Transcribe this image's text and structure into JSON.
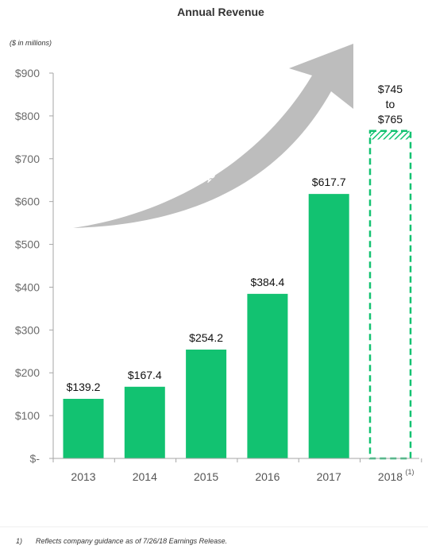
{
  "chart_data": {
    "type": "bar",
    "title": "Annual Revenue",
    "units_label": "($ in millions)",
    "categories": [
      "2013",
      "2014",
      "2015",
      "2016",
      "2017",
      "2018"
    ],
    "values": [
      139.2,
      167.4,
      254.2,
      384.4,
      617.7,
      null
    ],
    "data_labels": [
      "$139.2",
      "$167.4",
      "$254.2",
      "$384.4",
      "$617.7",
      ""
    ],
    "guidance": {
      "category": "2018",
      "low": 745,
      "high": 765,
      "label_lines": [
        "$745",
        "to",
        "$765"
      ],
      "footnote_marker": "(1)"
    },
    "ylim": [
      0,
      900
    ],
    "yticks": [
      0,
      100,
      200,
      300,
      400,
      500,
      600,
      700,
      800,
      900
    ],
    "ytick_labels": [
      "$-",
      "$100",
      "$200",
      "$300",
      "$400",
      "$500",
      "$600",
      "$700",
      "$800",
      "$900"
    ],
    "annotation": "'13 – '18 CAGR: 40%",
    "grid": false,
    "bar_color": "#12c271",
    "arrow_color": "#bdbdbd"
  },
  "footnote": {
    "number": "1)",
    "text": "Reflects company guidance as of 7/26/18 Earnings Release."
  }
}
